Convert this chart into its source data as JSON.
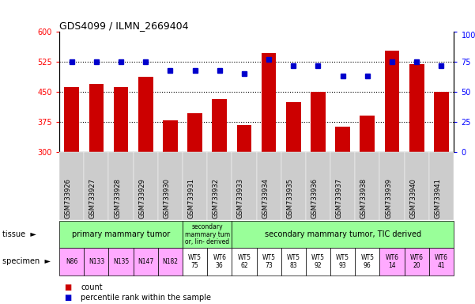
{
  "title": "GDS4099 / ILMN_2669404",
  "samples": [
    "GSM733926",
    "GSM733927",
    "GSM733928",
    "GSM733929",
    "GSM733930",
    "GSM733931",
    "GSM733932",
    "GSM733933",
    "GSM733934",
    "GSM733935",
    "GSM733936",
    "GSM733937",
    "GSM733938",
    "GSM733939",
    "GSM733940",
    "GSM733941"
  ],
  "counts": [
    463,
    470,
    462,
    487,
    380,
    397,
    433,
    368,
    548,
    425,
    451,
    363,
    390,
    553,
    520,
    451
  ],
  "percentile_ranks": [
    75,
    75,
    75,
    75,
    68,
    68,
    68,
    65,
    77,
    72,
    72,
    63,
    63,
    75,
    75,
    72
  ],
  "ylim_left": [
    300,
    600
  ],
  "ylim_right": [
    0,
    100
  ],
  "yticks_left": [
    300,
    375,
    450,
    525,
    600
  ],
  "yticks_right": [
    0,
    25,
    50,
    75,
    100
  ],
  "bar_color": "#cc0000",
  "dot_color": "#0000cc",
  "dotted_lines": [
    375,
    450,
    525
  ],
  "tissue_groups": [
    {
      "label": "primary mammary tumor",
      "start": 0,
      "end": 4,
      "color": "#99ff99"
    },
    {
      "label": "secondary\nmammary tum\nor, lin- derived",
      "start": 5,
      "end": 6,
      "color": "#99ff99"
    },
    {
      "label": "secondary mammary tumor, TIC derived",
      "start": 7,
      "end": 15,
      "color": "#99ff99"
    }
  ],
  "specimen_labels": [
    "N86",
    "N133",
    "N135",
    "N147",
    "N182",
    "WT5\n75",
    "WT6\n36",
    "WT5\n62",
    "WT5\n73",
    "WT5\n83",
    "WT5\n92",
    "WT5\n93",
    "WT5\n96",
    "WT6\n14",
    "WT6\n20",
    "WT6\n41"
  ],
  "specimen_colors": [
    "#ffaaff",
    "#ffaaff",
    "#ffaaff",
    "#ffaaff",
    "#ffaaff",
    "#ffffff",
    "#ffffff",
    "#ffffff",
    "#ffffff",
    "#ffffff",
    "#ffffff",
    "#ffffff",
    "#ffffff",
    "#ffaaff",
    "#ffaaff",
    "#ffaaff"
  ],
  "xticklabel_bg": "#cccccc",
  "background_color": "#ffffff"
}
